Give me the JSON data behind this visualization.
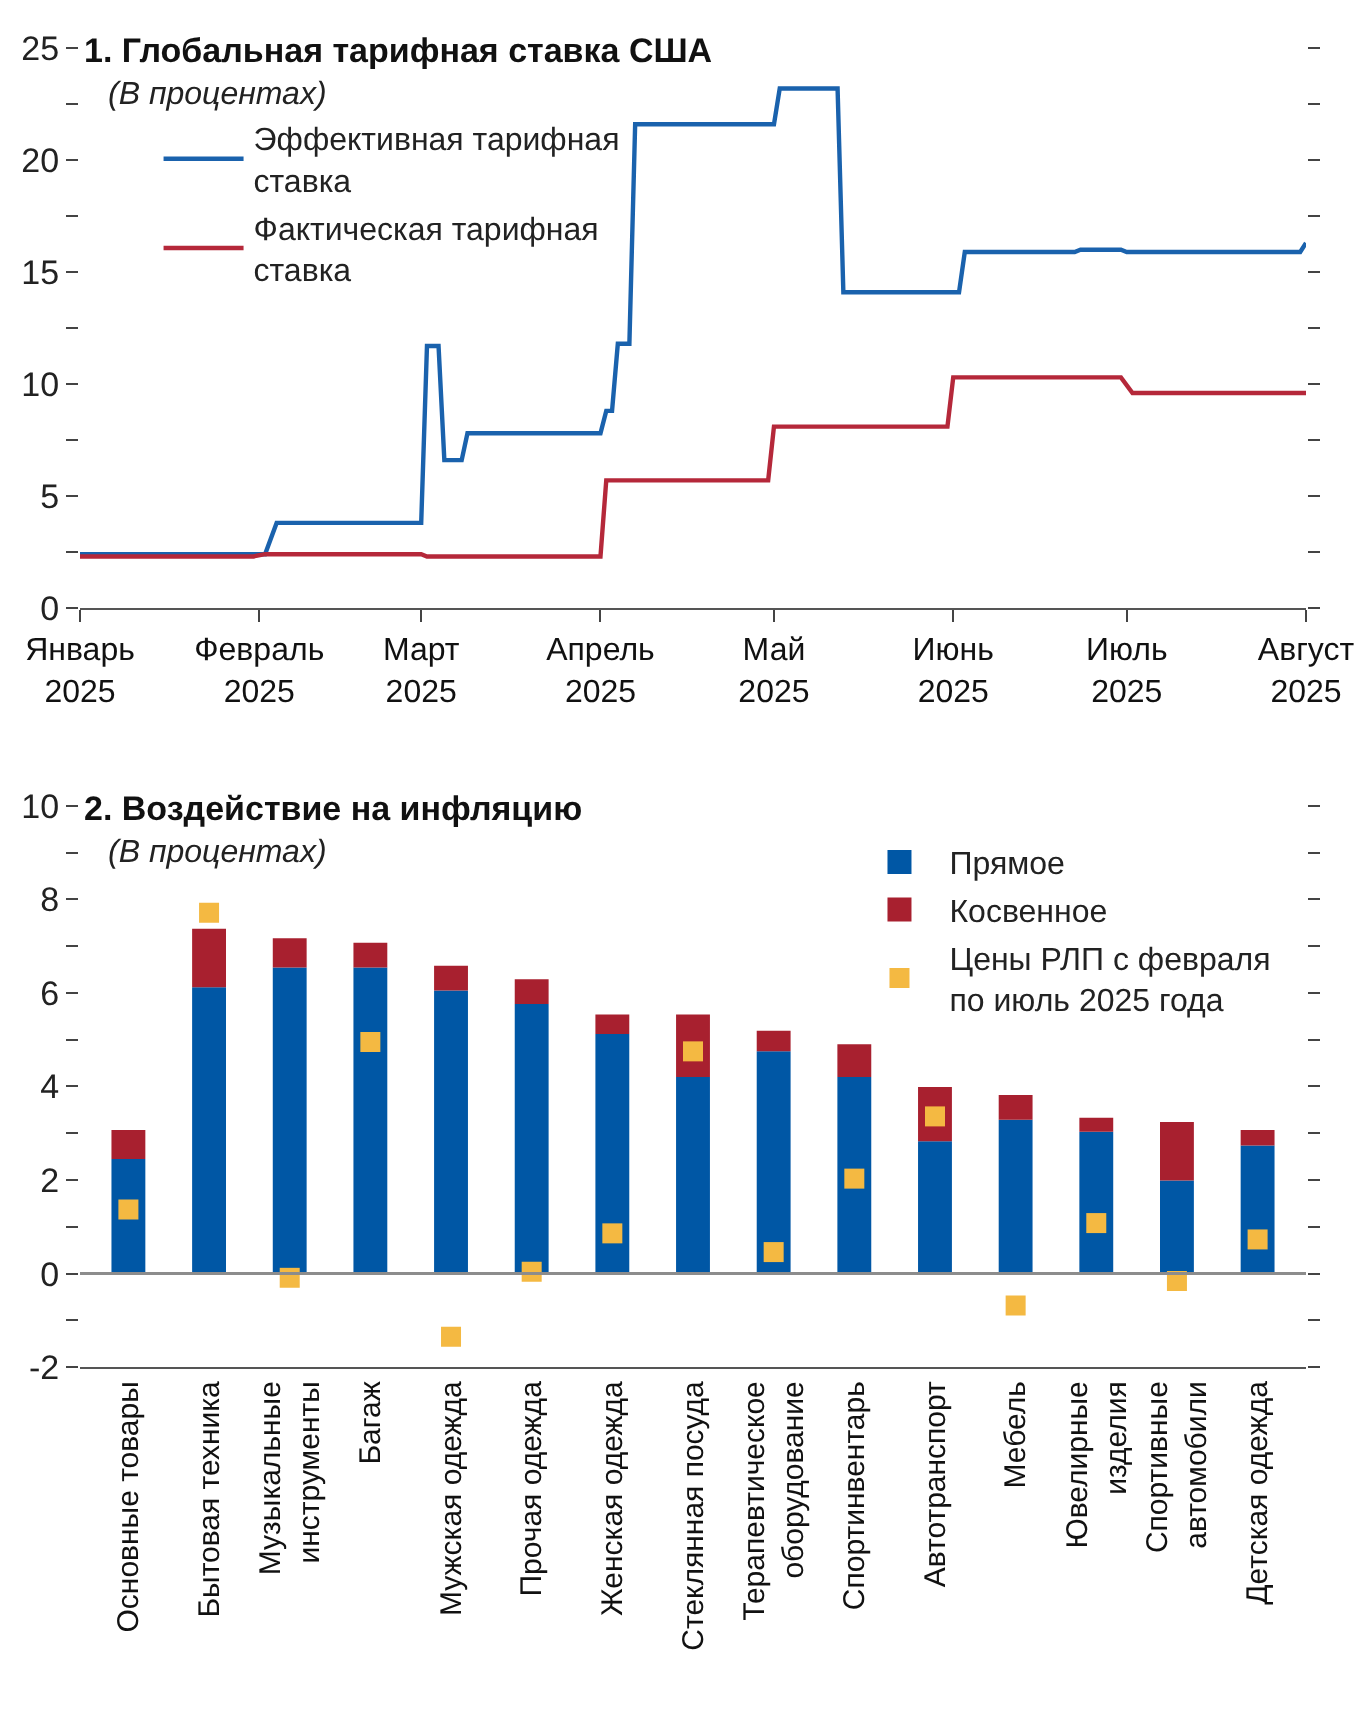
{
  "chart_data": [
    {
      "type": "line",
      "title": "1. Глобальная тарифная ставка США",
      "subtitle": "(В процентах)",
      "series": [
        {
          "name": "Эффективная тарифная\nставка",
          "color": "#1a62ad",
          "x": [
            "2025-01-01",
            "2025-02-02",
            "2025-02-04",
            "2025-03-01",
            "2025-03-02",
            "2025-03-04",
            "2025-03-05",
            "2025-03-08",
            "2025-03-09",
            "2025-04-01",
            "2025-04-02",
            "2025-04-03",
            "2025-04-04",
            "2025-04-06",
            "2025-04-07",
            "2025-05-01",
            "2025-05-02",
            "2025-05-12",
            "2025-05-13",
            "2025-06-02",
            "2025-06-03",
            "2025-06-22",
            "2025-06-23",
            "2025-06-30",
            "2025-07-01",
            "2025-07-31",
            "2025-08-01"
          ],
          "values": [
            2.4,
            2.4,
            3.8,
            3.8,
            11.7,
            11.7,
            6.6,
            6.6,
            7.8,
            7.8,
            8.8,
            8.8,
            11.8,
            11.8,
            21.6,
            21.6,
            23.2,
            23.2,
            14.1,
            14.1,
            15.9,
            15.9,
            16.0,
            16.0,
            15.9,
            15.9,
            16.3
          ]
        },
        {
          "name": "Фактическая тарифная\nставка",
          "color": "#b5283a",
          "x": [
            "2025-01-01",
            "2025-01-31",
            "2025-02-02",
            "2025-03-01",
            "2025-03-02",
            "2025-04-01",
            "2025-04-02",
            "2025-04-30",
            "2025-05-01",
            "2025-05-31",
            "2025-06-01",
            "2025-06-30",
            "2025-07-02",
            "2025-08-01"
          ],
          "values": [
            2.3,
            2.3,
            2.4,
            2.4,
            2.3,
            2.3,
            5.7,
            5.7,
            8.1,
            8.1,
            10.3,
            10.3,
            9.6,
            9.6
          ]
        }
      ],
      "xlim": [
        "2025-01-01",
        "2025-08-01"
      ],
      "xticks": [
        {
          "value": "2025-01-01",
          "label": "Январь\n2025"
        },
        {
          "value": "2025-02-01",
          "label": "Февраль\n2025"
        },
        {
          "value": "2025-03-01",
          "label": "Март\n2025"
        },
        {
          "value": "2025-04-01",
          "label": "Апрель\n2025"
        },
        {
          "value": "2025-05-01",
          "label": "Май\n2025"
        },
        {
          "value": "2025-06-01",
          "label": "Июнь\n2025"
        },
        {
          "value": "2025-07-01",
          "label": "Июль\n2025"
        },
        {
          "value": "2025-08-01",
          "label": "Август\n2025"
        }
      ],
      "ylim": [
        0,
        25
      ],
      "yticks": [
        0,
        {
          "value": 2.5,
          "label": null
        },
        5,
        {
          "value": 7.5,
          "label": null
        },
        10,
        {
          "value": 12.5,
          "label": null
        },
        15,
        {
          "value": 17.5,
          "label": null
        },
        20,
        {
          "value": 22.5,
          "label": null
        },
        25
      ],
      "legend": "top left",
      "line_style": "solid"
    },
    {
      "type": "bar",
      "title": "2. Воздействие на инфляцию",
      "subtitle": "(В процентах)",
      "stacked": true,
      "categories": [
        "Основные товары",
        "Бытовая техника",
        "Музыкальные\nинструменты",
        "Багаж",
        "Мужская одежда",
        "Прочая одежда",
        "Женская одежда",
        "Стеклянная посуда",
        "Терапевтическое\nоборудование",
        "Спортинвентарь",
        "Автотранспорт",
        "Мебель",
        "Ювелирные\nизделия",
        "Спортивные\nавтомобили",
        "Детская одежда"
      ],
      "series": [
        {
          "name": "Прямое",
          "color": "#0057a5",
          "values": [
            2.45,
            6.12,
            6.54,
            6.54,
            6.05,
            5.76,
            5.12,
            4.2,
            4.75,
            4.2,
            2.83,
            3.29,
            3.03,
            1.99,
            2.74
          ]
        },
        {
          "name": "Косвенное",
          "color": "#a8202f",
          "values": [
            0.62,
            1.25,
            0.63,
            0.53,
            0.53,
            0.53,
            0.42,
            1.34,
            0.44,
            0.7,
            1.16,
            0.53,
            0.3,
            1.25,
            0.33
          ]
        },
        {
          "name": "Цены РЛП с февраля\nпо июль 2025 года",
          "type": "scatter",
          "marker": "square",
          "color": "#f4b942",
          "values": [
            1.37,
            7.71,
            -0.09,
            4.95,
            -1.35,
            0.04,
            0.86,
            4.75,
            0.46,
            2.03,
            3.36,
            -0.68,
            1.08,
            -0.16,
            0.73
          ]
        }
      ],
      "ylim": [
        -2,
        10
      ],
      "yticks": [
        -2,
        {
          "value": -1,
          "label": null
        },
        0,
        {
          "value": 1,
          "label": null
        },
        2,
        {
          "value": 3,
          "label": null
        },
        4,
        {
          "value": 5,
          "label": null
        },
        6,
        {
          "value": 7,
          "label": null
        },
        8,
        {
          "value": 9,
          "label": null
        },
        10
      ],
      "ref_lines": [
        {
          "axis": "y",
          "value": 0,
          "color": "#8c8c8c"
        }
      ],
      "legend": "top right"
    }
  ]
}
